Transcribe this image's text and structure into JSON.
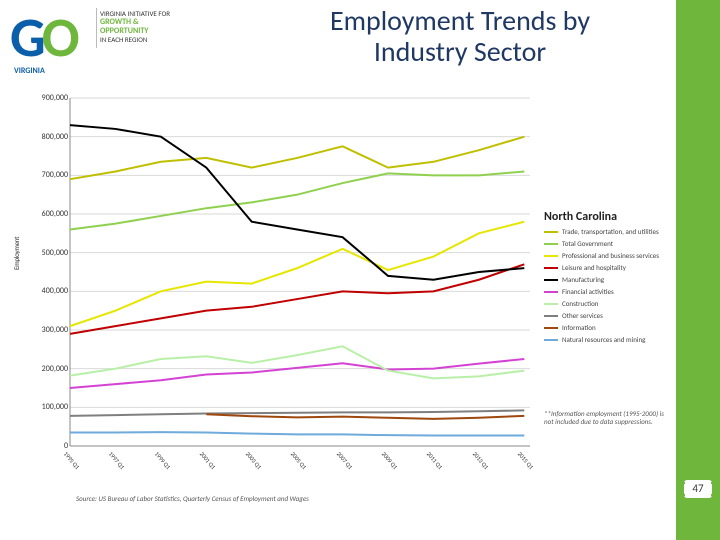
{
  "slide": {
    "title": "Employment Trends by Industry Sector",
    "page_number": "47",
    "source_note": "Source: US Bureau of Labor Statistics, Quarterly Census of Employment and Wages",
    "footnote": "**Information employment (1995-2000) is not included due to data suppressions.",
    "background_color": "#ffffff",
    "right_bar_color": "#6fb63c"
  },
  "logo": {
    "g": "G",
    "o": "O",
    "sub_virginia": "VIRGINIA",
    "line1": "VIRGINIA INITIATIVE FOR",
    "line2": "GROWTH &",
    "line3": "OPPORTUNITY",
    "line4": "IN EACH REGION"
  },
  "chart": {
    "type": "line",
    "title": "North Carolina",
    "x_range": [
      1995,
      2015.25
    ],
    "x_tick_step": 0.25,
    "y_range": [
      0,
      900000
    ],
    "y_tick_step": 100000,
    "y_tick_labels": [
      "0",
      "100,000",
      "200,000",
      "300,000",
      "400,000",
      "500,000",
      "600,000",
      "700,000",
      "800,000",
      "900,000"
    ],
    "y_axis_label": "Employment",
    "grid_color": "#d9d9d9",
    "axis_color": "#888888",
    "line_width": 2,
    "plot_background": "#ffffff",
    "series": [
      {
        "name": "Trade, transportation, and utilities",
        "color": "#bfbf00",
        "x": [
          1995,
          1997,
          1999,
          2001,
          2003,
          2005,
          2007,
          2009,
          2011,
          2013,
          2015
        ],
        "y": [
          690000,
          710000,
          735000,
          745000,
          720000,
          745000,
          775000,
          720000,
          735000,
          765000,
          800000
        ]
      },
      {
        "name": "Total Government",
        "color": "#8fd14f",
        "x": [
          1995,
          1997,
          1999,
          2001,
          2003,
          2005,
          2007,
          2009,
          2011,
          2013,
          2015
        ],
        "y": [
          560000,
          575000,
          595000,
          615000,
          630000,
          650000,
          680000,
          705000,
          700000,
          700000,
          710000
        ]
      },
      {
        "name": "Professional and business services",
        "color": "#e6e600",
        "x": [
          1995,
          1997,
          1999,
          2001,
          2003,
          2005,
          2007,
          2009,
          2011,
          2013,
          2015
        ],
        "y": [
          310000,
          350000,
          400000,
          425000,
          420000,
          460000,
          510000,
          455000,
          490000,
          550000,
          580000
        ]
      },
      {
        "name": "Leisure and hospitality",
        "color": "#c00000",
        "x": [
          1995,
          1997,
          1999,
          2001,
          2003,
          2005,
          2007,
          2009,
          2011,
          2013,
          2015
        ],
        "y": [
          290000,
          310000,
          330000,
          350000,
          360000,
          380000,
          400000,
          395000,
          400000,
          430000,
          470000
        ]
      },
      {
        "name": "Manufacturing",
        "color": "#000000",
        "x": [
          1995,
          1997,
          1999,
          2001,
          2003,
          2005,
          2007,
          2009,
          2011,
          2013,
          2015
        ],
        "y": [
          830000,
          820000,
          800000,
          720000,
          580000,
          560000,
          540000,
          440000,
          430000,
          450000,
          460000
        ]
      },
      {
        "name": "Financial activities",
        "color": "#d442d4",
        "x": [
          1995,
          1997,
          1999,
          2001,
          2003,
          2005,
          2007,
          2009,
          2011,
          2013,
          2015
        ],
        "y": [
          150000,
          160000,
          170000,
          185000,
          190000,
          202000,
          214000,
          198000,
          200000,
          213000,
          225000
        ]
      },
      {
        "name": "Construction",
        "color": "#b8f0a8",
        "x": [
          1995,
          1997,
          1999,
          2001,
          2003,
          2005,
          2007,
          2009,
          2011,
          2013,
          2015
        ],
        "y": [
          182000,
          200000,
          225000,
          232000,
          215000,
          235000,
          258000,
          195000,
          175000,
          180000,
          195000
        ]
      },
      {
        "name": "Other services",
        "color": "#7f7f7f",
        "x": [
          1995,
          1997,
          1999,
          2001,
          2003,
          2005,
          2007,
          2009,
          2011,
          2013,
          2015
        ],
        "y": [
          78000,
          80000,
          82000,
          84000,
          85000,
          86000,
          87000,
          87000,
          88000,
          90000,
          92000
        ]
      },
      {
        "name": "Information",
        "color": "#9e480e",
        "x": [
          2001,
          2003,
          2005,
          2007,
          2009,
          2011,
          2013,
          2015
        ],
        "y": [
          82000,
          77000,
          74000,
          76000,
          73000,
          70000,
          73000,
          78000
        ]
      },
      {
        "name": "Natural resources and mining",
        "color": "#6faadc",
        "x": [
          1995,
          1997,
          1999,
          2001,
          2003,
          2005,
          2007,
          2009,
          2011,
          2013,
          2015
        ],
        "y": [
          35000,
          35000,
          36000,
          35000,
          32000,
          30000,
          30000,
          28000,
          27000,
          27000,
          27000
        ]
      }
    ]
  }
}
